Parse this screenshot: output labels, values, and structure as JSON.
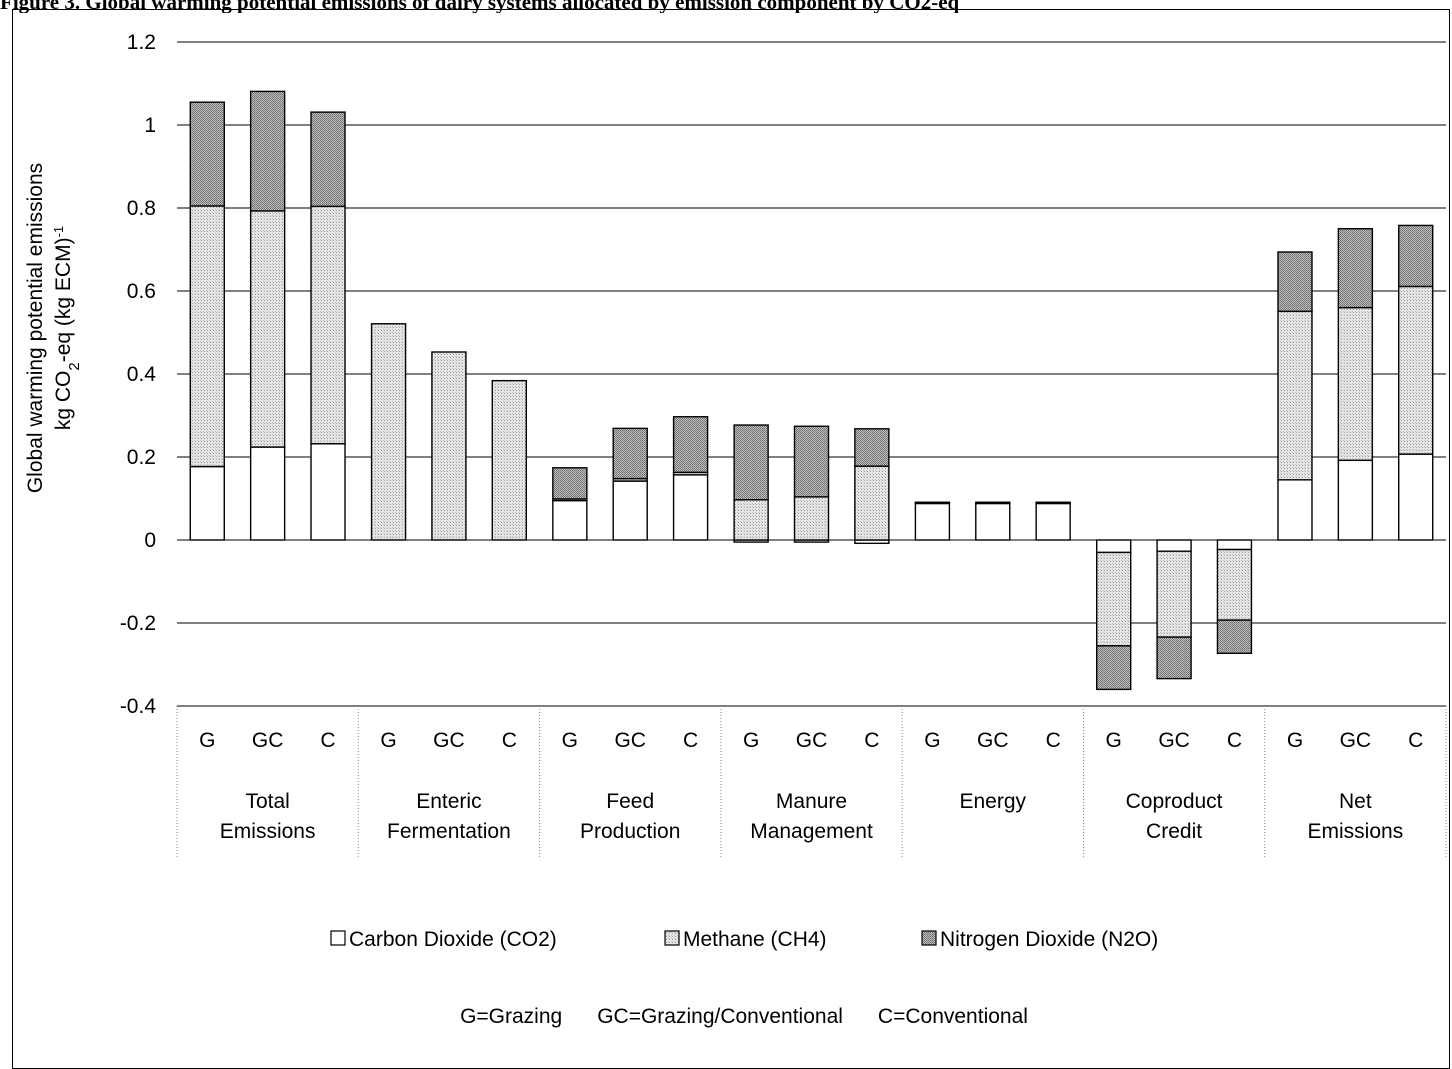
{
  "figure_caption": "Figure 3. Global warming potential emissions of dairy systems allocated by emission component by CO2-eq",
  "chart_data": {
    "type": "bar",
    "stacked": true,
    "ylabel_line1": "Global warming potential emissions",
    "ylabel_line2_prefix": "kg CO",
    "ylabel_line2_sub": "2",
    "ylabel_line2_mid": "-eq (kg ECM)",
    "ylabel_line2_sup": "-1",
    "ylim": [
      -0.4,
      1.2
    ],
    "yticks": [
      -0.4,
      -0.2,
      0,
      0.2,
      0.4,
      0.6,
      0.8,
      1,
      1.2
    ],
    "ytick_labels": [
      "-0.4",
      "-0.2",
      "0",
      "0.2",
      "0.4",
      "0.6",
      "0.8",
      "1",
      "1.2"
    ],
    "grid": true,
    "groups": [
      "Total\nEmissions",
      "Enteric\nFermentation",
      "Feed\nProduction",
      "Manure\nManagement",
      "Energy",
      "Coproduct\nCredit",
      "Net\nEmissions"
    ],
    "subcategories": [
      "G",
      "GC",
      "C"
    ],
    "series": [
      {
        "name": "Carbon Dioxide (CO2)",
        "color": "#ffffff",
        "values": [
          0.177,
          0.224,
          0.232,
          0,
          0,
          0,
          0.095,
          0.142,
          0.157,
          -0.005,
          -0.005,
          -0.008,
          0.088,
          0.088,
          0.088,
          -0.03,
          -0.027,
          -0.023,
          0.145,
          0.192,
          0.207
        ]
      },
      {
        "name": "Methane (CH4)",
        "color": "#d9d9d9",
        "values": [
          0.628,
          0.569,
          0.572,
          0.521,
          0.453,
          0.384,
          0.004,
          0.006,
          0.006,
          0.097,
          0.104,
          0.178,
          0.003,
          0.003,
          0.003,
          -0.225,
          -0.207,
          -0.17,
          0.406,
          0.368,
          0.404
        ]
      },
      {
        "name": "Nitrogen Dioxide (N2O)",
        "color": "#a6a6a6",
        "values": [
          0.25,
          0.288,
          0.227,
          0,
          0,
          0,
          0.075,
          0.121,
          0.134,
          0.18,
          0.17,
          0.09,
          0,
          0,
          0,
          -0.105,
          -0.1,
          -0.08,
          0.143,
          0.19,
          0.147
        ]
      }
    ],
    "legend_position": "bottom",
    "legend_note": "G=Grazing      GC=Grazing/Conventional      C=Conventional"
  }
}
